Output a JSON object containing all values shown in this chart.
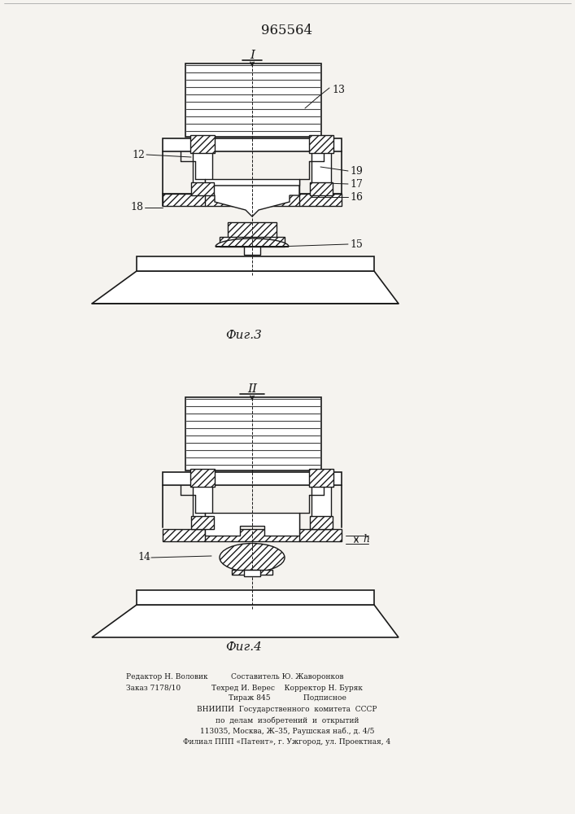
{
  "patent_number": "965564",
  "fig3_label": "I",
  "fig4_label": "II",
  "fig3_caption": "Фиг.3",
  "fig4_caption": "Фиг.4",
  "bg_color": "#f5f3ef",
  "line_color": "#1a1a1a",
  "footer_col1_line1": "Редактор Н. Воловик",
  "footer_col1_line2": "Заказ 7178/10",
  "footer_col2_line1": "Составитель Ю. Жаворонков",
  "footer_col2_line2": "Техред И. Верес",
  "footer_col2_line3": "Тираж 845",
  "footer_col3_line2": "Корректор Н. Буряк",
  "footer_col3_line3": "Подписное",
  "footer_vniip1": "ВНИИПИ  Государственного  комитета  СССР",
  "footer_vniip2": "по  делам  изобретений  и  открытий",
  "footer_vniip3": "113035, Москва, Ж–35, Раушская наб., д. 4/5",
  "footer_vniip4": "Филиал ППП «Патент», г. Ужгород, ул. Проектная, 4"
}
